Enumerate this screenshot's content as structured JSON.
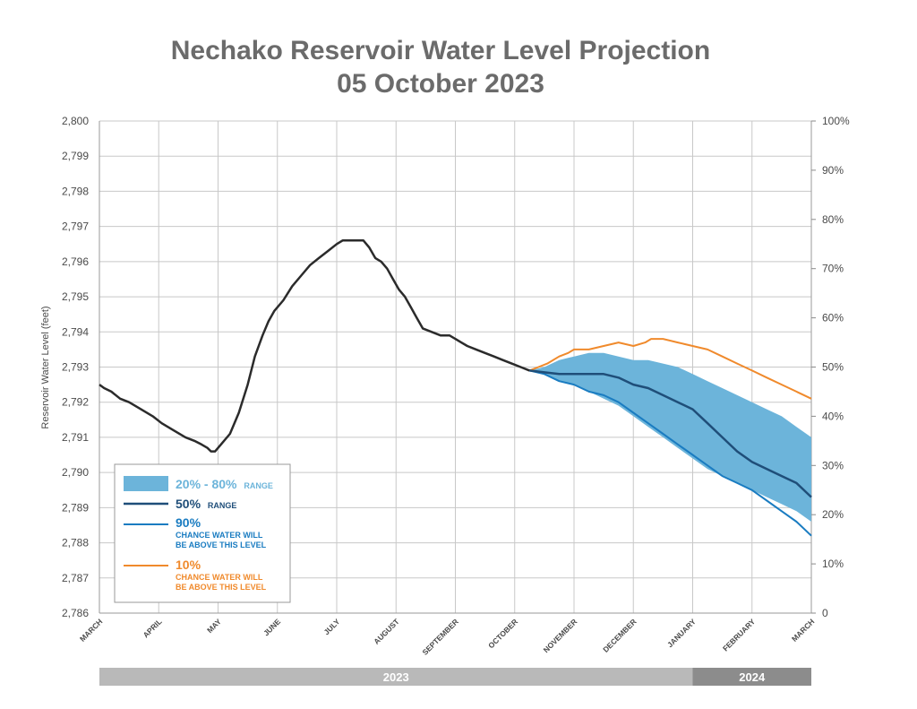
{
  "chart_data": {
    "type": "line",
    "title_line1": "Nechako Reservoir Water Level Projection",
    "title_line2": "05 October 2023",
    "ylabel": "Reservoir Water Level (feet)",
    "ylim": [
      2786,
      2800
    ],
    "y_ticks": [
      "2,786",
      "2,787",
      "2,788",
      "2,789",
      "2,790",
      "2,791",
      "2,792",
      "2,793",
      "2,794",
      "2,795",
      "2,796",
      "2,797",
      "2,798",
      "2,799",
      "2,800"
    ],
    "y2_ticks": [
      "0",
      "10%",
      "20%",
      "30%",
      "40%",
      "50%",
      "60%",
      "70%",
      "80%",
      "90%",
      "100%"
    ],
    "x_months": [
      "MARCH",
      "APRIL",
      "MAY",
      "JUNE",
      "JULY",
      "AUGUST",
      "SEPTEMBER",
      "OCTOBER",
      "NOVEMBER",
      "DECEMBER",
      "JANUARY",
      "FEBRUARY",
      "MARCH"
    ],
    "years": [
      {
        "label": "2023",
        "start": 0,
        "end": 10
      },
      {
        "label": "2024",
        "start": 10,
        "end": 12
      }
    ],
    "legend": {
      "range_label": "20% - 80%",
      "range_suffix": "RANGE",
      "median_label": "50%",
      "median_suffix": "RANGE",
      "p90_label": "90%",
      "p90_line1": "CHANCE WATER WILL",
      "p90_line2": "BE ABOVE THIS LEVEL",
      "p10_label": "10%",
      "p10_line1": "CHANCE WATER WILL",
      "p10_line2": "BE ABOVE THIS LEVEL"
    },
    "colors": {
      "historical": "#2b2b2b",
      "band": "#6cb4da",
      "median": "#1f4e79",
      "p90": "#1a7cc1",
      "p10": "#f08a2c",
      "grid": "#c8c8c8",
      "year_bar_2023": "#b9b9b9",
      "year_bar_2024": "#8c8c8c"
    },
    "series": [
      {
        "name": "Historical",
        "x": [
          0,
          0.08,
          0.2,
          0.35,
          0.5,
          0.7,
          0.9,
          1.05,
          1.25,
          1.45,
          1.6,
          1.72,
          1.82,
          1.88,
          1.95,
          2.05,
          2.2,
          2.35,
          2.5,
          2.62,
          2.75,
          2.85,
          2.95,
          3.1,
          3.25,
          3.4,
          3.55,
          3.7,
          3.85,
          4.0,
          4.1,
          4.2,
          4.35,
          4.45,
          4.55,
          4.65,
          4.75,
          4.85,
          4.95,
          5.05,
          5.15,
          5.25,
          5.35,
          5.45,
          5.6,
          5.75,
          5.9,
          6.0,
          6.1,
          6.2,
          6.35,
          6.5,
          6.65,
          6.8,
          6.95,
          7.1,
          7.25
        ],
        "y": [
          2792.5,
          2792.4,
          2792.3,
          2792.1,
          2792.0,
          2791.8,
          2791.6,
          2791.4,
          2791.2,
          2791.0,
          2790.9,
          2790.8,
          2790.7,
          2790.6,
          2790.6,
          2790.8,
          2791.1,
          2791.7,
          2792.5,
          2793.3,
          2793.9,
          2794.3,
          2794.6,
          2794.9,
          2795.3,
          2795.6,
          2795.9,
          2796.1,
          2796.3,
          2796.5,
          2796.6,
          2796.6,
          2796.6,
          2796.6,
          2796.4,
          2796.1,
          2796.0,
          2795.8,
          2795.5,
          2795.2,
          2795.0,
          2794.7,
          2794.4,
          2794.1,
          2794.0,
          2793.9,
          2793.9,
          2793.8,
          2793.7,
          2793.6,
          2793.5,
          2793.4,
          2793.3,
          2793.2,
          2793.1,
          2793.0,
          2792.9
        ]
      },
      {
        "name": "20% - 80%",
        "x": [
          7.25,
          7.5,
          7.75,
          8.0,
          8.25,
          8.5,
          8.75,
          9.0,
          9.25,
          9.5,
          9.75,
          10.0,
          10.25,
          10.5,
          10.75,
          11.0,
          11.25,
          11.5,
          11.75,
          12.0
        ],
        "upper": [
          2792.9,
          2793.0,
          2793.2,
          2793.3,
          2793.4,
          2793.4,
          2793.3,
          2793.2,
          2793.2,
          2793.1,
          2793.0,
          2792.8,
          2792.6,
          2792.4,
          2792.2,
          2792.0,
          2791.8,
          2791.6,
          2791.3,
          2791.0
        ],
        "lower": [
          2792.9,
          2792.8,
          2792.6,
          2792.5,
          2792.3,
          2792.1,
          2791.9,
          2791.6,
          2791.3,
          2791.0,
          2790.7,
          2790.4,
          2790.1,
          2789.9,
          2789.7,
          2789.5,
          2789.3,
          2789.1,
          2788.9,
          2788.6
        ]
      },
      {
        "name": "50%",
        "x": [
          7.25,
          7.5,
          7.75,
          8.0,
          8.25,
          8.5,
          8.75,
          9.0,
          9.25,
          9.5,
          9.75,
          10.0,
          10.25,
          10.5,
          10.75,
          11.0,
          11.25,
          11.5,
          11.75,
          12.0
        ],
        "y": [
          2792.9,
          2792.85,
          2792.8,
          2792.8,
          2792.8,
          2792.8,
          2792.7,
          2792.5,
          2792.4,
          2792.2,
          2792.0,
          2791.8,
          2791.4,
          2791.0,
          2790.6,
          2790.3,
          2790.1,
          2789.9,
          2789.7,
          2789.3
        ]
      },
      {
        "name": "90%",
        "x": [
          7.25,
          7.5,
          7.75,
          8.0,
          8.25,
          8.5,
          8.75,
          9.0,
          9.25,
          9.5,
          9.75,
          10.0,
          10.25,
          10.5,
          10.75,
          11.0,
          11.25,
          11.5,
          11.75,
          12.0
        ],
        "y": [
          2792.9,
          2792.8,
          2792.6,
          2792.5,
          2792.3,
          2792.2,
          2792.0,
          2791.7,
          2791.4,
          2791.1,
          2790.8,
          2790.5,
          2790.2,
          2789.9,
          2789.7,
          2789.5,
          2789.2,
          2788.9,
          2788.6,
          2788.2
        ]
      },
      {
        "name": "10%",
        "x": [
          7.25,
          7.4,
          7.55,
          7.75,
          7.9,
          8.0,
          8.25,
          8.5,
          8.75,
          9.0,
          9.2,
          9.3,
          9.5,
          9.75,
          10.0,
          10.25,
          10.5,
          10.75,
          11.0,
          11.25,
          11.5,
          11.75,
          12.0
        ],
        "y": [
          2792.9,
          2793.0,
          2793.1,
          2793.3,
          2793.4,
          2793.5,
          2793.5,
          2793.6,
          2793.7,
          2793.6,
          2793.7,
          2793.8,
          2793.8,
          2793.7,
          2793.6,
          2793.5,
          2793.3,
          2793.1,
          2792.9,
          2792.7,
          2792.5,
          2792.3,
          2792.1
        ]
      }
    ]
  }
}
